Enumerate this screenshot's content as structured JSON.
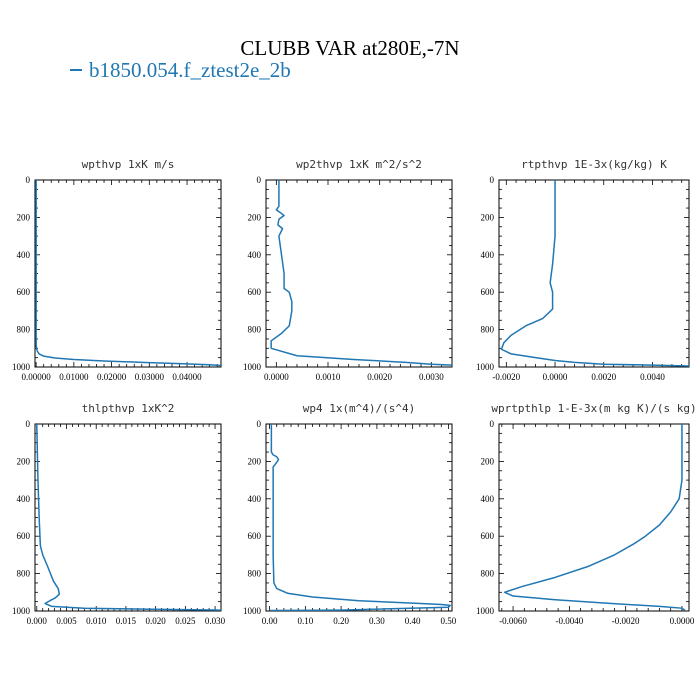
{
  "figure": {
    "title": "CLUBB VAR at280E,-7N",
    "legend": [
      {
        "name": "b1850.054.f_ztest2e_2b",
        "color": "#1f77b4"
      }
    ]
  },
  "chart_data": [
    {
      "type": "line",
      "title": "wpthvp   1xK m/s",
      "xlim": [
        -0.0003,
        0.049
      ],
      "ylim": [
        1000,
        0
      ],
      "xticks": [
        0.0,
        0.01,
        0.02,
        0.03,
        0.04
      ],
      "xticklabels": [
        "0.00000",
        "0.01000",
        "0.02000",
        "0.03000",
        "0.04000"
      ],
      "yticks": [
        0,
        200,
        400,
        600,
        800,
        1000
      ],
      "yticklabels": [
        "0",
        "200",
        "400",
        "600",
        "800",
        "1000"
      ],
      "series": [
        {
          "color": "#1f77b4",
          "x": [
            0,
            0,
            0.0001,
            0.0003,
            0.0008,
            0.002,
            0.005,
            0.01,
            0.018,
            0.028,
            0.038,
            0.046,
            0.049
          ],
          "y": [
            0,
            880,
            900,
            915,
            930,
            942,
            952,
            960,
            968,
            975,
            982,
            988,
            992
          ]
        }
      ]
    },
    {
      "type": "line",
      "title": "wp2thvp   1xK m^2/s^2",
      "xlim": [
        -0.0002,
        0.0034
      ],
      "ylim": [
        1000,
        0
      ],
      "xticks": [
        0.0,
        0.001,
        0.002,
        0.003
      ],
      "xticklabels": [
        "0.0000",
        "0.0010",
        "0.0020",
        "0.0030"
      ],
      "yticks": [
        0,
        200,
        400,
        600,
        800,
        1000
      ],
      "yticklabels": [
        "0",
        "200",
        "400",
        "600",
        "800",
        "1000"
      ],
      "series": [
        {
          "color": "#1f77b4",
          "x": [
            5e-05,
            5e-05,
            5e-05,
            0.0,
            8e-05,
            0.00015,
            5e-05,
            3e-05,
            0.00012,
            5e-05,
            0.0001,
            0.00015,
            0.00015,
            0.00025,
            0.0003,
            0.0003,
            0.00025,
            0.0001,
            -0.0001,
            -0.0001,
            0.0004,
            0.0015,
            0.0025,
            0.003,
            0.0034
          ],
          "y": [
            0,
            100,
            140,
            160,
            175,
            190,
            210,
            240,
            260,
            300,
            400,
            500,
            580,
            600,
            650,
            700,
            780,
            820,
            860,
            900,
            940,
            960,
            975,
            985,
            990
          ]
        }
      ]
    },
    {
      "type": "line",
      "title": "rtpthvp   1E-3x(kg/kg) K",
      "xlim": [
        -0.0023,
        0.0055
      ],
      "ylim": [
        1000,
        0
      ],
      "xticks": [
        -0.002,
        0.0,
        0.002,
        0.004
      ],
      "xticklabels": [
        "-0.0020",
        "0.0000",
        "0.0020",
        "0.0040"
      ],
      "yticks": [
        0,
        200,
        400,
        600,
        800,
        1000
      ],
      "yticklabels": [
        "0",
        "200",
        "400",
        "600",
        "800",
        "1000"
      ],
      "series": [
        {
          "color": "#1f77b4",
          "x": [
            0.0,
            0.0,
            -0.0001,
            -0.0002,
            -0.0001,
            -0.0001,
            -0.0005,
            -0.0012,
            -0.0018,
            -0.0021,
            -0.0022,
            -0.0018,
            -0.0008,
            0.0,
            0.0008,
            0.002,
            0.004,
            0.0055
          ],
          "y": [
            0,
            300,
            450,
            550,
            600,
            690,
            740,
            780,
            830,
            870,
            905,
            930,
            950,
            965,
            975,
            985,
            990,
            995
          ]
        }
      ]
    },
    {
      "type": "line",
      "title": "thlpthvp   1xK^2",
      "xlim": [
        -0.0003,
        0.031
      ],
      "ylim": [
        1000,
        0
      ],
      "xticks": [
        0.0,
        0.005,
        0.01,
        0.015,
        0.02,
        0.025,
        0.03
      ],
      "xticklabels": [
        "0.000",
        "0.005",
        "0.010",
        "0.015",
        "0.020",
        "0.025",
        "0.030"
      ],
      "yticks": [
        0,
        200,
        400,
        600,
        800,
        1000
      ],
      "yticklabels": [
        "0",
        "200",
        "400",
        "600",
        "800",
        "1000"
      ],
      "series": [
        {
          "color": "#1f77b4",
          "x": [
            0.0,
            0.0002,
            0.0004,
            0.0006,
            0.001,
            0.0018,
            0.0028,
            0.0036,
            0.0038,
            0.0031,
            0.0022,
            0.0014,
            0.0025,
            0.008,
            0.018,
            0.028,
            0.031
          ],
          "y": [
            0,
            300,
            500,
            650,
            700,
            760,
            840,
            880,
            910,
            930,
            945,
            960,
            975,
            985,
            990,
            994,
            995
          ]
        }
      ]
    },
    {
      "type": "line",
      "title": "wp4   1x(m^4)/(s^4)",
      "xlim": [
        -0.01,
        0.51
      ],
      "ylim": [
        1000,
        0
      ],
      "xticks": [
        0.0,
        0.1,
        0.2,
        0.3,
        0.4,
        0.5
      ],
      "xticklabels": [
        "0.00",
        "0.10",
        "0.20",
        "0.30",
        "0.40",
        "0.50"
      ],
      "yticks": [
        0,
        200,
        400,
        600,
        800,
        1000
      ],
      "yticklabels": [
        "0",
        "200",
        "400",
        "600",
        "800",
        "1000"
      ],
      "series": [
        {
          "color": "#1f77b4",
          "x": [
            0.005,
            0.005,
            0.01,
            0.02,
            0.025,
            0.02,
            0.01,
            0.01,
            0.01,
            0.01,
            0.012,
            0.02,
            0.05,
            0.12,
            0.25,
            0.4,
            0.48,
            0.505,
            0.5,
            0.2,
            0.0
          ],
          "y": [
            0,
            150,
            165,
            175,
            190,
            205,
            230,
            300,
            500,
            700,
            850,
            880,
            905,
            925,
            945,
            958,
            965,
            970,
            980,
            995,
            997
          ]
        }
      ]
    },
    {
      "type": "line",
      "title": "wprtpthlp   1-E-3x(m kg K)/(s kg)",
      "xlim": [
        -0.0065,
        0.00025
      ],
      "ylim": [
        1000,
        0
      ],
      "xticks": [
        -0.006,
        -0.004,
        -0.002,
        0.0
      ],
      "xticklabels": [
        "-0.0060",
        "-0.0040",
        "-0.0020",
        "0.0000"
      ],
      "yticks": [
        0,
        200,
        400,
        600,
        800,
        1000
      ],
      "yticklabels": [
        "0",
        "200",
        "400",
        "600",
        "800",
        "1000"
      ],
      "series": [
        {
          "color": "#1f77b4",
          "x": [
            0.0,
            0.0,
            -0.0001,
            -0.0004,
            -0.0008,
            -0.0013,
            -0.0017,
            -0.0024,
            -0.0033,
            -0.0045,
            -0.0057,
            -0.0063,
            -0.006,
            -0.0045,
            -0.0025,
            -0.0008,
            0.0,
            0.0001
          ],
          "y": [
            0,
            300,
            400,
            470,
            540,
            600,
            640,
            700,
            760,
            820,
            870,
            900,
            920,
            940,
            960,
            975,
            985,
            995
          ]
        }
      ]
    }
  ]
}
